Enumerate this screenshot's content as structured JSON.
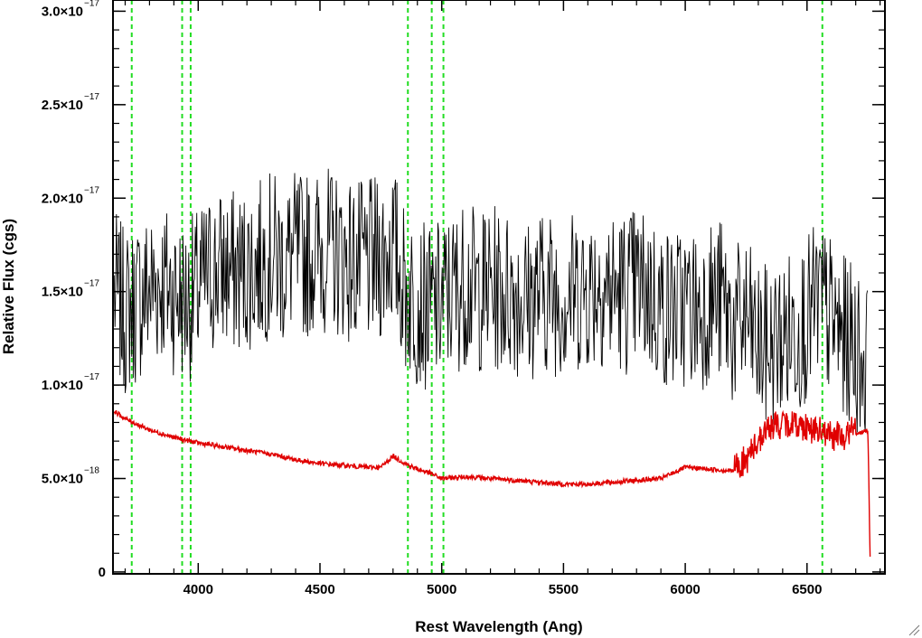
{
  "chart_data": {
    "type": "line",
    "title": "",
    "xlabel": "Rest Wavelength (Ang)",
    "ylabel": "Relative Flux (cgs)",
    "xlim": [
      3650,
      6820
    ],
    "ylim": [
      -1e-19,
      3.06e-17
    ],
    "x_ticks": [
      4000,
      4500,
      5000,
      5500,
      6000,
      6500
    ],
    "x_tick_labels": [
      "4000",
      "4500",
      "5000",
      "5500",
      "6000",
      "6500"
    ],
    "y_ticks": [
      {
        "value": 0,
        "mantissa": "0",
        "exponent": ""
      },
      {
        "value": 5e-18,
        "mantissa": "5.0×10",
        "exponent": "−18"
      },
      {
        "value": 1e-17,
        "mantissa": "1.0×10",
        "exponent": "−17"
      },
      {
        "value": 1.5e-17,
        "mantissa": "1.5×10",
        "exponent": "−17"
      },
      {
        "value": 2e-17,
        "mantissa": "2.0×10",
        "exponent": "−17"
      },
      {
        "value": 2.5e-17,
        "mantissa": "2.5×10",
        "exponent": "−17"
      },
      {
        "value": 3e-17,
        "mantissa": "3.0×10",
        "exponent": "−17"
      }
    ],
    "grid": false,
    "reference_lines_x": [
      3727,
      3934,
      3969,
      4861,
      4959,
      5007,
      6563
    ],
    "series": [
      {
        "color": "#000000",
        "x": [
          3655,
          3700,
          3750,
          3800,
          3850,
          3900,
          3950,
          4000,
          4050,
          4100,
          4150,
          4200,
          4250,
          4300,
          4350,
          4400,
          4450,
          4500,
          4550,
          4600,
          4650,
          4700,
          4750,
          4800,
          4850,
          4900,
          4950,
          5000,
          5050,
          5100,
          5150,
          5200,
          5250,
          5300,
          5350,
          5400,
          5450,
          5500,
          5550,
          5600,
          5650,
          5700,
          5750,
          5800,
          5850,
          5900,
          5950,
          6000,
          6050,
          6100,
          6150,
          6200,
          6250,
          6300,
          6350,
          6400,
          6450,
          6500,
          6550,
          6600,
          6650,
          6700,
          6750
        ],
        "y": [
          1.5e-17,
          1.38e-17,
          1.45e-17,
          1.52e-17,
          1.55e-17,
          1.5e-17,
          1.45e-17,
          1.5e-17,
          1.6e-17,
          1.62e-17,
          1.6e-17,
          1.62e-17,
          1.65e-17,
          1.7e-17,
          1.65e-17,
          1.7e-17,
          1.7e-17,
          1.72e-17,
          1.72e-17,
          1.68e-17,
          1.65e-17,
          1.65e-17,
          1.68e-17,
          1.75e-17,
          1.5e-17,
          1.45e-17,
          1.4e-17,
          1.45e-17,
          1.5e-17,
          1.55e-17,
          1.5e-17,
          1.52e-17,
          1.5e-17,
          1.5e-17,
          1.45e-17,
          1.5e-17,
          1.5e-17,
          1.48e-17,
          1.5e-17,
          1.52e-17,
          1.55e-17,
          1.5e-17,
          1.5e-17,
          1.52e-17,
          1.5e-17,
          1.42e-17,
          1.4e-17,
          1.42e-17,
          1.4e-17,
          1.45e-17,
          1.45e-17,
          1.3e-17,
          1.35e-17,
          1.2e-17,
          1.2e-17,
          1.25e-17,
          1.3e-17,
          1.35e-17,
          1.45e-17,
          1.35e-17,
          1.25e-17,
          1.2e-17,
          1.1e-17
        ],
        "noise_amplitude": 4.5e-18
      },
      {
        "color": "#e00000",
        "x": [
          3655,
          3700,
          3800,
          3900,
          4000,
          4100,
          4200,
          4300,
          4400,
          4500,
          4600,
          4700,
          4750,
          4800,
          4850,
          4900,
          4950,
          5000,
          5100,
          5200,
          5300,
          5400,
          5500,
          5600,
          5700,
          5800,
          5900,
          6000,
          6100,
          6200,
          6250,
          6300,
          6350,
          6400,
          6450,
          6500,
          6550,
          6600,
          6650,
          6700,
          6750,
          6760
        ],
        "y": [
          8.6e-18,
          8.2e-18,
          7.6e-18,
          7.2e-18,
          6.9e-18,
          6.7e-18,
          6.5e-18,
          6.3e-18,
          6e-18,
          5.8e-18,
          5.7e-18,
          5.6e-18,
          5.6e-18,
          6.2e-18,
          5.8e-18,
          5.5e-18,
          5.3e-18,
          5e-18,
          5.1e-18,
          5e-18,
          4.9e-18,
          4.8e-18,
          4.7e-18,
          4.7e-18,
          4.8e-18,
          4.9e-18,
          5e-18,
          5.6e-18,
          5.5e-18,
          5.4e-18,
          5.6e-18,
          6.8e-18,
          7.5e-18,
          7.6e-18,
          7.6e-18,
          7.5e-18,
          7.2e-18,
          7e-18,
          6.9e-18,
          7.4e-18,
          7.6e-18,
          0
        ]
      }
    ]
  }
}
